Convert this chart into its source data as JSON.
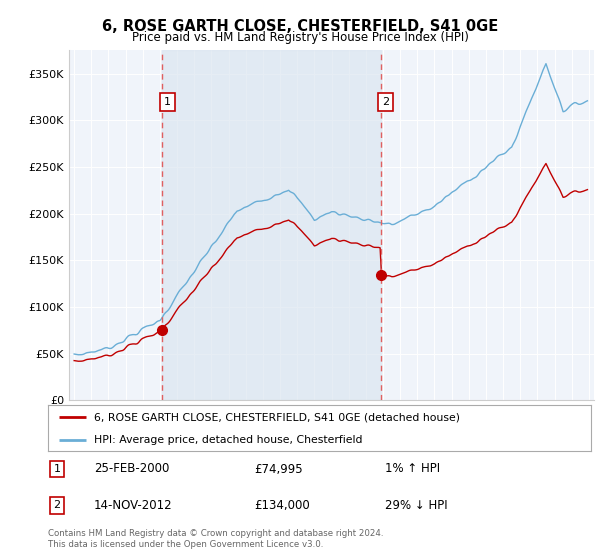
{
  "title": "6, ROSE GARTH CLOSE, CHESTERFIELD, S41 0GE",
  "subtitle": "Price paid vs. HM Land Registry's House Price Index (HPI)",
  "legend_line1": "6, ROSE GARTH CLOSE, CHESTERFIELD, S41 0GE (detached house)",
  "legend_line2": "HPI: Average price, detached house, Chesterfield",
  "footer": "Contains HM Land Registry data © Crown copyright and database right 2024.\nThis data is licensed under the Open Government Licence v3.0.",
  "transaction1_date": "25-FEB-2000",
  "transaction1_price": 74995,
  "transaction1_hpi_text": "1% ↑ HPI",
  "transaction1_year": 2000.12,
  "transaction2_date": "14-NOV-2012",
  "transaction2_price": 134000,
  "transaction2_hpi_text": "29% ↓ HPI",
  "transaction2_year": 2012.87,
  "hpi_color": "#6aaed6",
  "price_color": "#c00000",
  "vline_color": "#e06060",
  "dot_color": "#c00000",
  "shade_color": "#dce6f1",
  "background_color": "#f0f4fa",
  "ylim_max": 375000,
  "xlim_start": 1994.7,
  "xlim_end": 2025.3
}
